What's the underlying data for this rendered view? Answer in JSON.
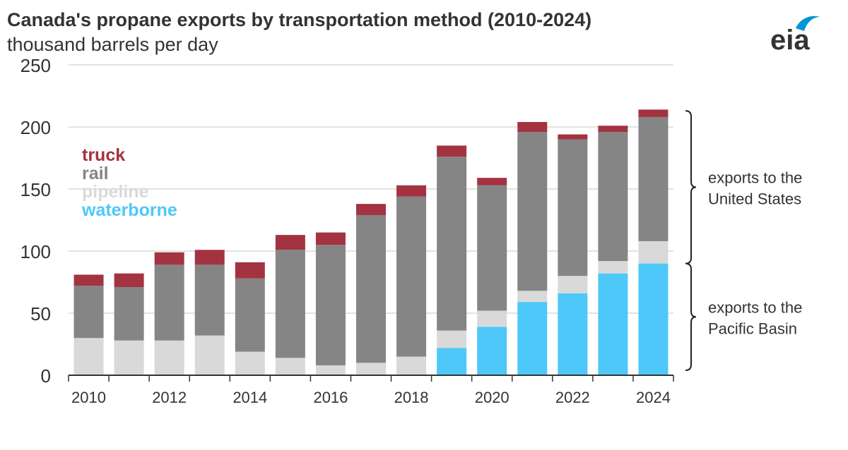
{
  "header": {
    "title": "Canada's propane exports by transportation method (2010-2024)",
    "subtitle": "thousand barrels per day"
  },
  "logo": {
    "text": "eia",
    "icon": "eia-logo-icon"
  },
  "colors": {
    "waterborne": "#4dc8f8",
    "pipeline": "#d9d9d9",
    "rail": "#858585",
    "truck": "#a33341",
    "gridline": "#d9d9d9",
    "axis": "#333333",
    "logo": "#0096d6"
  },
  "chart_data": {
    "type": "bar",
    "stacked": true,
    "categories": [
      "2010",
      "2011",
      "2012",
      "2013",
      "2014",
      "2015",
      "2016",
      "2017",
      "2018",
      "2019",
      "2020",
      "2021",
      "2022",
      "2023",
      "2024"
    ],
    "x_tick_labels": [
      "2010",
      "2012",
      "2014",
      "2016",
      "2018",
      "2020",
      "2022",
      "2024"
    ],
    "series": [
      {
        "name": "waterborne",
        "values": [
          0,
          0,
          0,
          0,
          0,
          0,
          0,
          0,
          0,
          22,
          39,
          59,
          66,
          82,
          90
        ]
      },
      {
        "name": "pipeline",
        "values": [
          30,
          28,
          28,
          32,
          19,
          14,
          8,
          10,
          15,
          14,
          13,
          9,
          14,
          10,
          18
        ]
      },
      {
        "name": "rail",
        "values": [
          42,
          43,
          61,
          57,
          59,
          87,
          97,
          119,
          129,
          140,
          101,
          128,
          110,
          104,
          100
        ]
      },
      {
        "name": "truck",
        "values": [
          9,
          11,
          10,
          12,
          13,
          12,
          10,
          9,
          9,
          9,
          6,
          8,
          4,
          5,
          6
        ]
      }
    ],
    "legend_order": [
      "truck",
      "rail",
      "pipeline",
      "waterborne"
    ],
    "legend_placement": "top-left",
    "ylim": [
      0,
      250
    ],
    "yticks": [
      0,
      50,
      100,
      150,
      200,
      250
    ],
    "grid": true,
    "annotations": [
      {
        "text": "exports to the",
        "text2": "United States",
        "y_range": [
          90,
          213
        ]
      },
      {
        "text": "exports to the",
        "text2": "Pacific Basin",
        "y_range": [
          4,
          90
        ]
      }
    ]
  }
}
